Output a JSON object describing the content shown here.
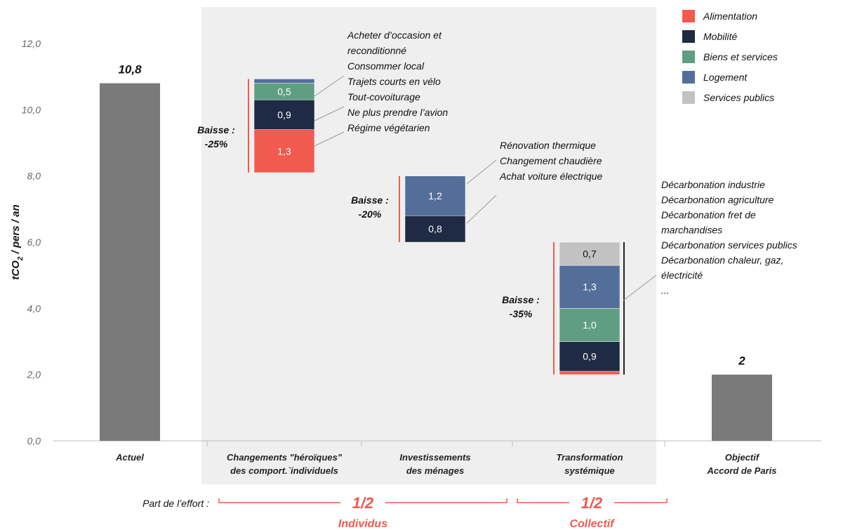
{
  "chart_data": {
    "type": "bar",
    "ylabel_main": "tCO",
    "ylabel_sub": "2",
    "ylabel_rest": " / pers / an",
    "ylim": [
      0,
      12
    ],
    "yticks": [
      "0,0",
      "2,0",
      "4,0",
      "6,0",
      "8,0",
      "10,0",
      "12,0"
    ],
    "ytick_values": [
      0,
      2,
      4,
      6,
      8,
      10,
      12
    ],
    "categories": [
      {
        "lines": [
          "Actuel"
        ]
      },
      {
        "lines": [
          "Changements \"héroïques\"",
          "des comport.`individuels"
        ]
      },
      {
        "lines": [
          "Investissements",
          "des ménages"
        ]
      },
      {
        "lines": [
          "Transformation",
          "systémique"
        ]
      },
      {
        "lines": [
          "Objectif",
          "Accord de Paris"
        ]
      }
    ],
    "legend": [
      {
        "name": "Alimentation",
        "color": "#f25a4f"
      },
      {
        "name": "Mobilité",
        "color": "#1f2a44"
      },
      {
        "name": "Biens et services",
        "color": "#5f9e83"
      },
      {
        "name": "Logement",
        "color": "#546e9a"
      },
      {
        "name": "Services publics",
        "color": "#c2c2c2"
      }
    ],
    "totals": [
      {
        "category": 0,
        "value": 10.8,
        "label": "10,8",
        "color": "#7a7a7a"
      },
      {
        "category": 4,
        "value": 2,
        "label": "2",
        "color": "#7a7a7a"
      }
    ],
    "steps": [
      {
        "category": 1,
        "base": 8.1,
        "baisse": [
          "Baisse :",
          "-25%"
        ],
        "segments": [
          {
            "series": "Alimentation",
            "value": 1.3,
            "label": "1,3"
          },
          {
            "series": "Mobilité",
            "value": 0.9,
            "label": "0,9"
          },
          {
            "series": "Biens et services",
            "value": 0.5,
            "label": "0,5"
          },
          {
            "series": "Logement",
            "value": 0.13,
            "label": ""
          }
        ],
        "annotations": [
          "Acheter d’occasion et",
          "reconditionné",
          "Consommer local",
          "Trajets courts en vélo",
          "Tout-covoiturage",
          "Ne plus prendre l’avion",
          "Régime végétarien"
        ]
      },
      {
        "category": 2,
        "base": 6.0,
        "baisse": [
          "Baisse :",
          "-20%"
        ],
        "segments": [
          {
            "series": "Mobilité",
            "value": 0.8,
            "label": "0,8"
          },
          {
            "series": "Logement",
            "value": 1.2,
            "label": "1,2"
          }
        ],
        "annotations": [
          "Rénovation thermique",
          "Changement chaudière",
          "Achat voiture électrique"
        ]
      },
      {
        "category": 3,
        "base": 2.0,
        "baisse": [
          "Baisse :",
          "-35%"
        ],
        "segments": [
          {
            "series": "Alimentation",
            "value": 0.1,
            "label": ""
          },
          {
            "series": "Mobilité",
            "value": 0.9,
            "label": "0,9"
          },
          {
            "series": "Biens et services",
            "value": 1.0,
            "label": "1,0"
          },
          {
            "series": "Logement",
            "value": 1.3,
            "label": "1,3"
          },
          {
            "series": "Services publics",
            "value": 0.7,
            "label": "0,7"
          }
        ],
        "annotations": [
          "Décarbonation industrie",
          "Décarbonation agriculture",
          "Décarbonation fret de",
          "marchandises",
          "Décarbonation services publics",
          "Décarbonation chaleur, gaz,",
          "électricité",
          "..."
        ]
      }
    ],
    "effort": {
      "label": "Part de l’effort :",
      "groups": [
        {
          "fraction": "1/2",
          "name": "Individus"
        },
        {
          "fraction": "1/2",
          "name": "Collectif"
        }
      ]
    }
  }
}
